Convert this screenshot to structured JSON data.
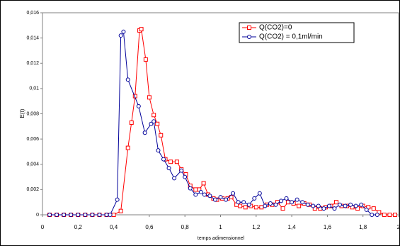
{
  "chart_data": {
    "type": "line",
    "xlabel": "temps adimensionnel",
    "ylabel": "E(t)",
    "xlim": [
      0,
      2
    ],
    "ylim": [
      0,
      0.016
    ],
    "xticks": [
      0,
      {
        "value": 0.2,
        "label": "0,2"
      },
      {
        "value": 0.4,
        "label": "0,4"
      },
      {
        "value": 0.6,
        "label": "0,6"
      },
      {
        "value": 0.8,
        "label": "0,8"
      },
      1,
      {
        "value": 1.2,
        "label": "1,2"
      },
      {
        "value": 1.4,
        "label": "1,4"
      },
      {
        "value": 1.6,
        "label": "1,6"
      },
      {
        "value": 1.8,
        "label": "1,8"
      },
      2
    ],
    "yticks": [
      0,
      {
        "value": 0.002,
        "label": "0,002"
      },
      {
        "value": 0.004,
        "label": "0,004"
      },
      {
        "value": 0.006,
        "label": "0,006"
      },
      {
        "value": 0.008,
        "label": "0,008"
      },
      {
        "value": 0.01,
        "label": "0,01"
      },
      {
        "value": 0.012,
        "label": "0,012"
      },
      {
        "value": 0.014,
        "label": "0,014"
      },
      {
        "value": 0.016,
        "label": "0,016"
      }
    ],
    "legend": "upper right",
    "series": [
      {
        "name": "Q(CO2)=0",
        "color": "#ff0000",
        "marker": "square",
        "x": [
          0.04,
          0.08,
          0.12,
          0.16,
          0.2,
          0.24,
          0.28,
          0.32,
          0.36,
          0.4,
          0.44,
          0.48,
          0.5,
          0.52,
          0.545,
          0.555,
          0.58,
          0.6,
          0.625,
          0.645,
          0.665,
          0.69,
          0.72,
          0.755,
          0.78,
          0.805,
          0.83,
          0.86,
          0.88,
          0.905,
          0.93,
          0.96,
          0.98,
          1.01,
          1.04,
          1.06,
          1.09,
          1.11,
          1.14,
          1.17,
          1.2,
          1.23,
          1.26,
          1.29,
          1.32,
          1.35,
          1.38,
          1.41,
          1.44,
          1.47,
          1.5,
          1.53,
          1.56,
          1.59,
          1.62,
          1.65,
          1.68,
          1.71,
          1.74,
          1.77,
          1.8,
          1.83,
          1.86,
          1.89,
          1.92,
          1.95,
          1.98
        ],
        "values": [
          0,
          0,
          0,
          0,
          0,
          0,
          0,
          0,
          0,
          0,
          0.0003,
          0.0053,
          0.0073,
          0.0094,
          0.0146,
          0.0147,
          0.0123,
          0.0093,
          0.0079,
          0.0072,
          0.0063,
          0.0044,
          0.0042,
          0.0042,
          0.0036,
          0.0032,
          0.0023,
          0.002,
          0.002,
          0.0025,
          0.0016,
          0.0013,
          0.0012,
          0.0013,
          0.0013,
          0.0014,
          0.0008,
          0.0007,
          0.0006,
          0.0007,
          0.0006,
          0.0006,
          0.0008,
          0.0008,
          0.001,
          0.0005,
          0.001,
          0.0009,
          0.0007,
          0.0009,
          0.0008,
          0.0005,
          0.0005,
          0.0006,
          0.0007,
          0.001,
          0.0007,
          0.0007,
          0.0006,
          0.0005,
          0.0007,
          0.0006,
          0.0005,
          0.0002,
          0,
          0,
          0
        ]
      },
      {
        "name": "Q(CO2) = 0,1ml/min",
        "color": "#000099",
        "marker": "circle",
        "x": [
          0.04,
          0.08,
          0.12,
          0.16,
          0.2,
          0.24,
          0.28,
          0.32,
          0.36,
          0.38,
          0.42,
          0.44,
          0.455,
          0.48,
          0.54,
          0.575,
          0.61,
          0.625,
          0.65,
          0.68,
          0.71,
          0.74,
          0.78,
          0.8,
          0.83,
          0.86,
          0.89,
          0.91,
          0.94,
          0.97,
          1.0,
          1.03,
          1.07,
          1.1,
          1.13,
          1.16,
          1.19,
          1.22,
          1.25,
          1.28,
          1.31,
          1.34,
          1.37,
          1.4,
          1.43,
          1.46,
          1.49,
          1.52,
          1.55,
          1.58,
          1.61,
          1.64,
          1.67,
          1.7,
          1.73,
          1.76,
          1.79,
          1.82,
          1.85,
          1.88
        ],
        "values": [
          0,
          0,
          0,
          0,
          0,
          0,
          0,
          0,
          0,
          0,
          0.0012,
          0.0142,
          0.0145,
          0.0107,
          0.0086,
          0.0065,
          0.0072,
          0.0074,
          0.0051,
          0.0044,
          0.0037,
          0.0029,
          0.0035,
          0.003,
          0.0021,
          0.0016,
          0.0018,
          0.0016,
          0.0015,
          0.0012,
          0.0014,
          0.0012,
          0.0017,
          0.001,
          0.001,
          0.0008,
          0.0013,
          0.0017,
          0.0007,
          0.0009,
          0.0008,
          0.0011,
          0.0013,
          0.001,
          0.0012,
          0.001,
          0.0008,
          0.0007,
          0.0007,
          0.0005,
          0.0007,
          0.0005,
          0.0008,
          0.0007,
          0.0008,
          0.0007,
          0.0008,
          0.0004,
          0,
          0
        ]
      }
    ]
  }
}
